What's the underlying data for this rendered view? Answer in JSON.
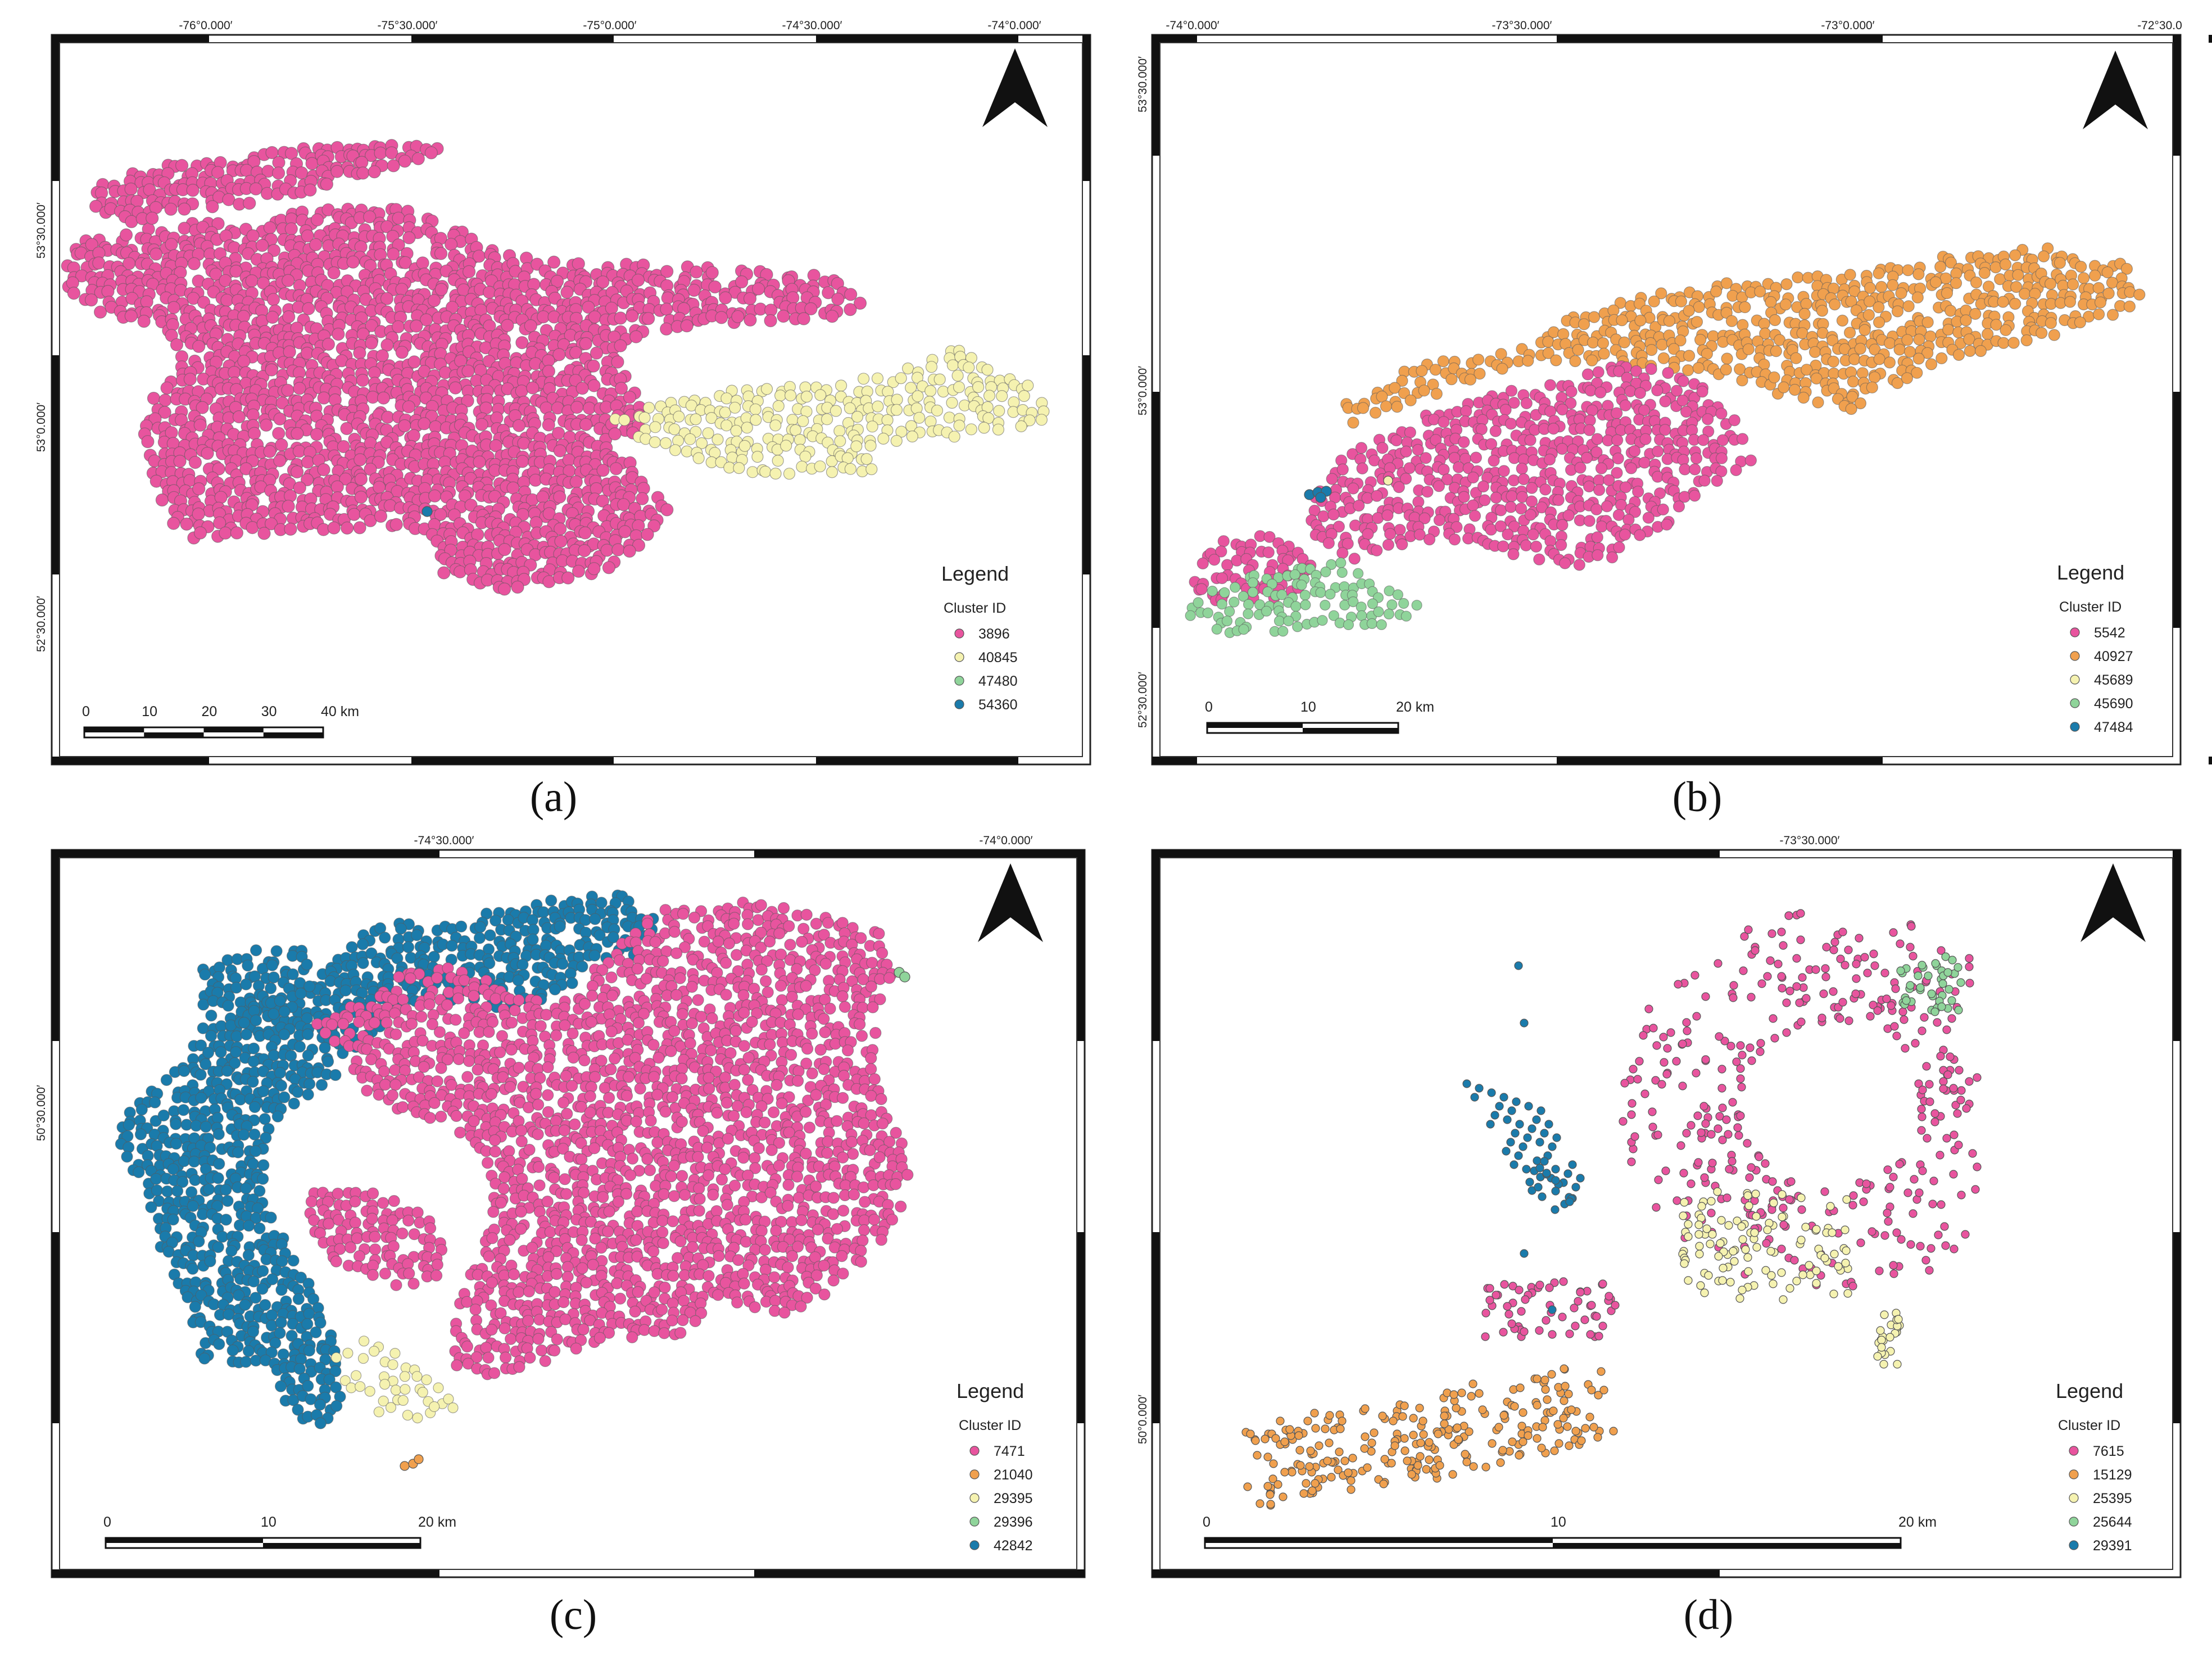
{
  "figure": {
    "captions": [
      "(a)",
      "(b)",
      "(c)",
      "(d)"
    ]
  },
  "icons": {
    "north_arrow": "north-arrow-icon"
  },
  "colors": {
    "pink": "#e8549e",
    "orange": "#f0a04e",
    "light_yellow": "#f5f2b0",
    "green": "#8fd49a",
    "blue": "#1a7bab"
  },
  "panels": [
    {
      "id": "a",
      "caption": "(a)",
      "top_ticks": [
        "-76°0.000′",
        "-75°30.000′",
        "-75°0.000′",
        "-74°30.000′",
        "-74°0.000′"
      ],
      "left_ticks": [
        "53°30.000′",
        "53°0.000′",
        "52°30.000′"
      ],
      "legend": {
        "title": "Legend",
        "subtitle": "Cluster ID",
        "items": [
          {
            "label": "3896",
            "color": "#e8549e"
          },
          {
            "label": "40845",
            "color": "#f5f2b0"
          },
          {
            "label": "47480",
            "color": "#8fd49a"
          },
          {
            "label": "54360",
            "color": "#1a7bab"
          }
        ]
      },
      "scalebar": {
        "labels": [
          "0",
          "10",
          "20",
          "30",
          "40 km"
        ]
      }
    },
    {
      "id": "b",
      "caption": "(b)",
      "top_ticks": [
        "-74°0.000′",
        "-73°30.000′",
        "-73°0.000′",
        "-72°30.0"
      ],
      "left_ticks": [
        "53°30.000′",
        "53°0.000′",
        "52°30.000′"
      ],
      "legend": {
        "title": "Legend",
        "subtitle": "Cluster ID",
        "items": [
          {
            "label": "5542",
            "color": "#e8549e"
          },
          {
            "label": "40927",
            "color": "#f0a04e"
          },
          {
            "label": "45689",
            "color": "#f5f2b0"
          },
          {
            "label": "45690",
            "color": "#8fd49a"
          },
          {
            "label": "47484",
            "color": "#1a7bab"
          }
        ]
      },
      "scalebar": {
        "labels": [
          "0",
          "10",
          "20 km"
        ]
      }
    },
    {
      "id": "c",
      "caption": "(c)",
      "top_ticks": [
        "-74°30.000′",
        "-74°0.000′"
      ],
      "left_ticks": [
        "50°30.000′"
      ],
      "legend": {
        "title": "Legend",
        "subtitle": "Cluster ID",
        "items": [
          {
            "label": "7471",
            "color": "#e8549e"
          },
          {
            "label": "21040",
            "color": "#f0a04e"
          },
          {
            "label": "29395",
            "color": "#f5f2b0"
          },
          {
            "label": "29396",
            "color": "#8fd49a"
          },
          {
            "label": "42842",
            "color": "#1a7bab"
          }
        ]
      },
      "scalebar": {
        "labels": [
          "0",
          "10",
          "20 km"
        ]
      }
    },
    {
      "id": "d",
      "caption": "(d)",
      "top_ticks": [
        "-73°30.000′"
      ],
      "left_ticks": [
        "50°0.000′"
      ],
      "legend": {
        "title": "Legend",
        "subtitle": "Cluster ID",
        "items": [
          {
            "label": "7615",
            "color": "#e8549e"
          },
          {
            "label": "15129",
            "color": "#f0a04e"
          },
          {
            "label": "25395",
            "color": "#f5f2b0"
          },
          {
            "label": "25644",
            "color": "#8fd49a"
          },
          {
            "label": "29391",
            "color": "#1a7bab"
          }
        ]
      },
      "scalebar": {
        "labels": [
          "0",
          "10",
          "20 km"
        ]
      }
    }
  ]
}
